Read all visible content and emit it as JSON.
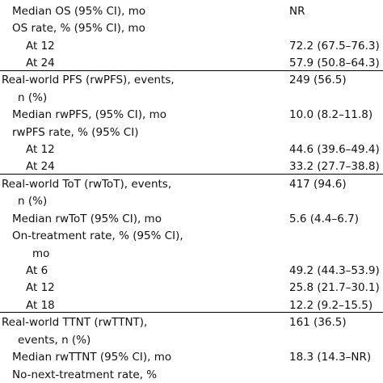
{
  "rows": [
    {
      "label": "Median OS (95% CI), mo",
      "value": "NR"
    },
    {
      "label": "OS rate, % (95% CI), mo",
      "value": ""
    },
    {
      "label": "At 12",
      "value": "72.2 (67.5–76.3)"
    },
    {
      "label": "At 24",
      "value": "57.9 (50.8–64.3)"
    },
    {
      "label": "Real-world PFS (rwPFS), events,",
      "value": "249 (56.5)"
    },
    {
      "label": "n (%)",
      "value": ""
    },
    {
      "label": "Median rwPFS, (95% CI), mo",
      "value": "10.0 (8.2–11.8)"
    },
    {
      "label": "rwPFS rate, % (95% CI)",
      "value": ""
    },
    {
      "label": "At 12",
      "value": "44.6 (39.6–49.4)"
    },
    {
      "label": "At 24",
      "value": "33.2 (27.7–38.8)"
    },
    {
      "label": "Real-world ToT (rwToT), events,",
      "value": "417 (94.6)"
    },
    {
      "label": "n (%)",
      "value": ""
    },
    {
      "label": "Median rwToT (95% CI), mo",
      "value": "5.6 (4.4–6.7)"
    },
    {
      "label": "On-treatment rate, % (95% CI),",
      "value": ""
    },
    {
      "label": "mo",
      "value": ""
    },
    {
      "label": "At 6",
      "value": "49.2 (44.3–53.9)"
    },
    {
      "label": "At 12",
      "value": "25.8 (21.7–30.1)"
    },
    {
      "label": "At 18",
      "value": "12.2 (9.2–15.5)"
    },
    {
      "label": "Real-world TTNT (rwTTNT),",
      "value": "161 (36.5)"
    },
    {
      "label": "events, n (%)",
      "value": ""
    },
    {
      "label": "Median rwTTNT (95% CI), mo",
      "value": "18.3 (14.3–NR)"
    },
    {
      "label": "No-next-treatment rate, %",
      "value": ""
    }
  ]
}
